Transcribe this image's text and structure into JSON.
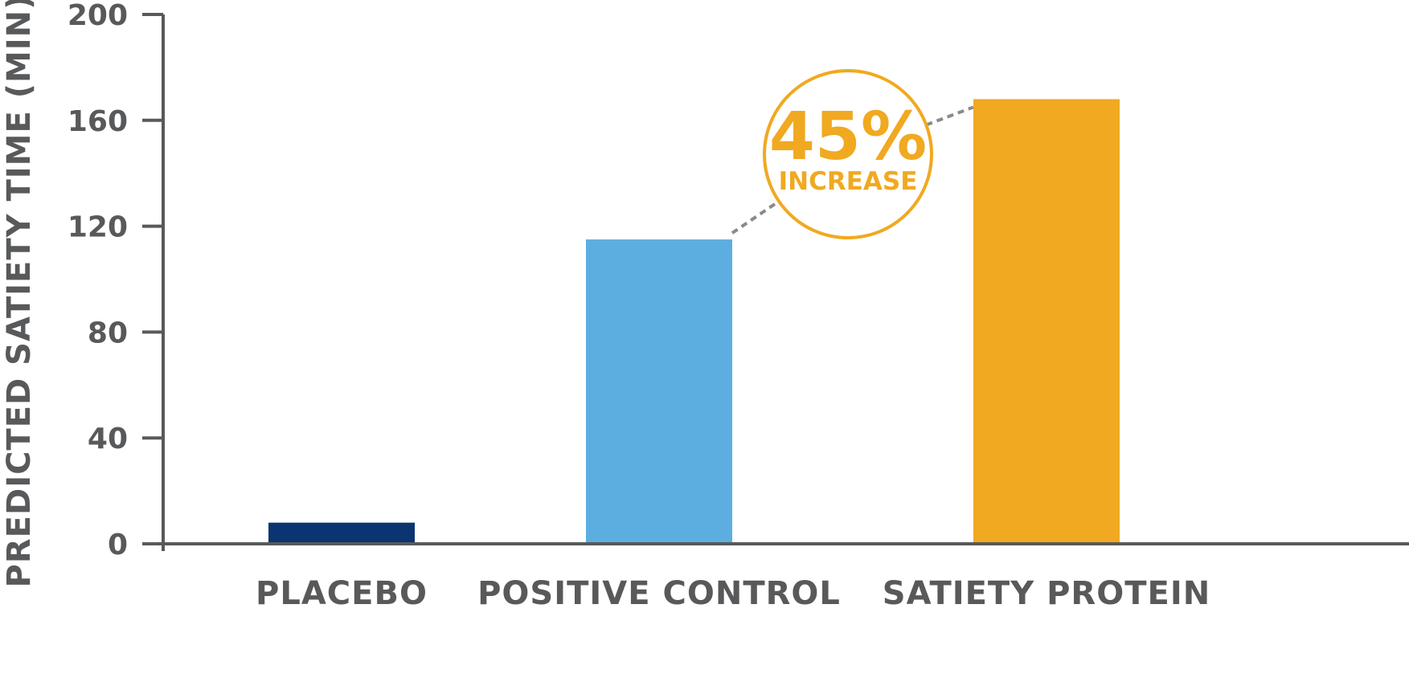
{
  "chart_data": {
    "type": "bar",
    "title": "",
    "xlabel": "",
    "ylabel": "PREDICTED SATIETY TIME (MIN)",
    "ylim": [
      0,
      200
    ],
    "yticks": [
      0,
      40,
      80,
      120,
      160,
      200
    ],
    "grid": false,
    "categories": [
      "PLACEBO",
      "POSITIVE CONTROL",
      "SATIETY PROTEIN"
    ],
    "values": [
      8,
      115,
      168
    ],
    "colors": [
      "#0a3570",
      "#5daee0",
      "#f0a920"
    ],
    "axis_color": "#58595b",
    "annotation": {
      "value": "45%",
      "label": "INCREASE",
      "color": "#f0a920",
      "connector_color": "#8a8a8a",
      "from_category": "POSITIVE CONTROL",
      "to_category": "SATIETY PROTEIN"
    }
  }
}
